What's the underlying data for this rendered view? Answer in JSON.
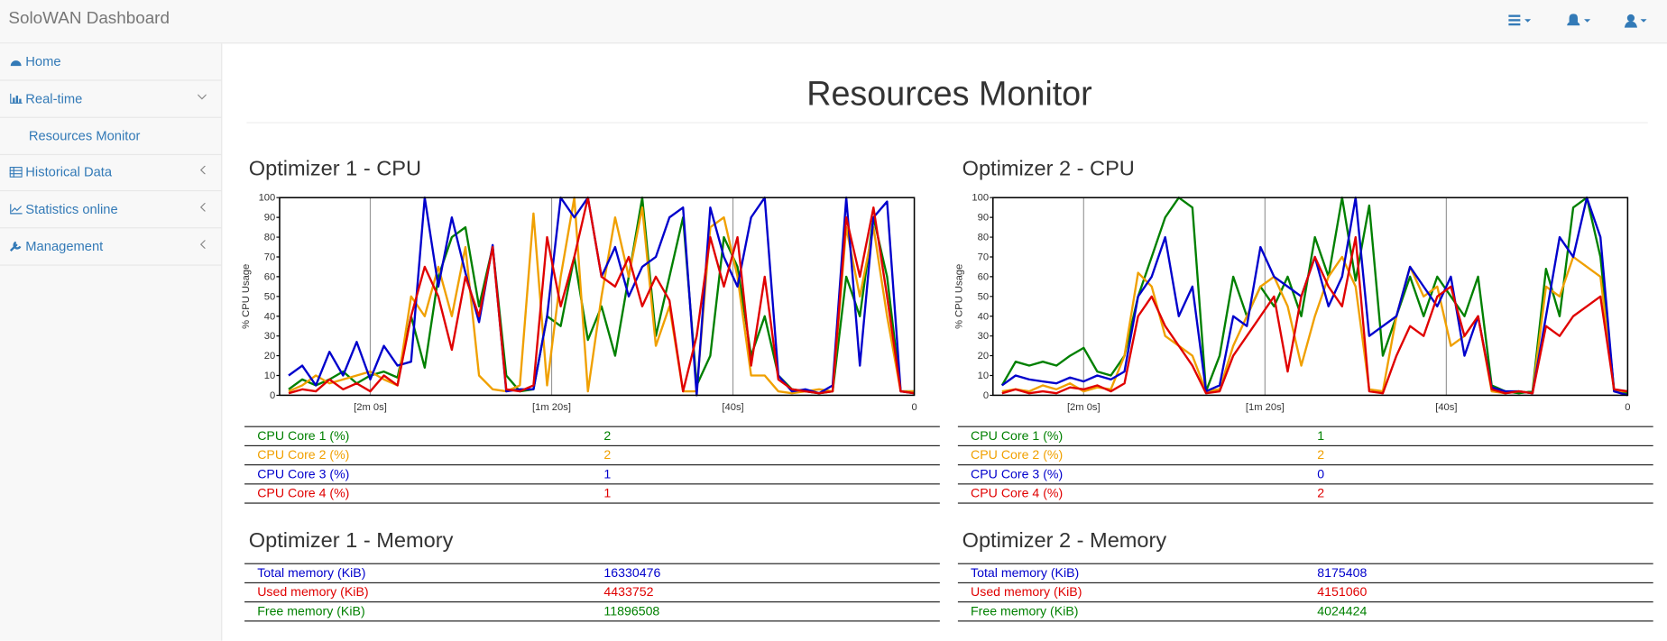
{
  "header": {
    "title": "SoloWAN Dashboard"
  },
  "sidebar": {
    "items": [
      {
        "label": "Home"
      },
      {
        "label": "Real-time"
      },
      {
        "label": "Resources Monitor"
      },
      {
        "label": "Historical Data"
      },
      {
        "label": "Statistics online"
      },
      {
        "label": "Management"
      }
    ]
  },
  "page_title": "Resources Monitor",
  "chart_data": [
    {
      "type": "line",
      "title": "Optimizer 1 - CPU",
      "ylabel": "% CPU Usage",
      "x": [
        -138,
        -135,
        -132,
        -129,
        -126,
        -123,
        -120,
        -117,
        -114,
        -111,
        -108,
        -105,
        -102,
        -99,
        -96,
        -93,
        -90,
        -87,
        -84,
        -81,
        -78,
        -75,
        -72,
        -69,
        -66,
        -63,
        -60,
        -57,
        -54,
        -51,
        -48,
        -45,
        -42,
        -39,
        -36,
        -33,
        -30,
        -27,
        -24,
        -21,
        -18,
        -15,
        -12,
        -9,
        -6,
        -3,
        0
      ],
      "xlim": [
        -140,
        0
      ],
      "xticks": [
        {
          "value": -120,
          "label": "[2m 0s]"
        },
        {
          "value": -80,
          "label": "[1m 20s]"
        },
        {
          "value": -40,
          "label": "[40s]"
        },
        0
      ],
      "ylim": [
        0,
        100
      ],
      "yticks": [
        0,
        10,
        20,
        30,
        40,
        50,
        60,
        70,
        80,
        90,
        100
      ],
      "grid": "x",
      "series": [
        {
          "name": "CPU Core 1 (%)",
          "color": "#008000",
          "values": [
            3,
            8,
            5,
            8,
            12,
            6,
            10,
            12,
            9,
            40,
            14,
            60,
            80,
            85,
            45,
            75,
            10,
            2,
            3,
            40,
            35,
            70,
            28,
            45,
            20,
            60,
            100,
            30,
            60,
            90,
            5,
            20,
            80,
            65,
            20,
            40,
            10,
            3,
            2,
            1,
            2,
            60,
            40,
            90,
            60,
            2,
            2
          ]
        },
        {
          "name": "CPU Core 2 (%)",
          "color": "#f0a000",
          "values": [
            2,
            5,
            10,
            6,
            8,
            10,
            12,
            8,
            5,
            50,
            40,
            65,
            40,
            75,
            10,
            3,
            2,
            5,
            92,
            5,
            60,
            100,
            2,
            50,
            90,
            60,
            95,
            25,
            45,
            2,
            2,
            85,
            90,
            60,
            10,
            10,
            2,
            1,
            2,
            3,
            2,
            85,
            50,
            85,
            40,
            2,
            2
          ]
        },
        {
          "name": "CPU Core 3 (%)",
          "color": "#0000cc",
          "values": [
            10,
            15,
            5,
            22,
            10,
            27,
            8,
            25,
            15,
            17,
            100,
            55,
            90,
            62,
            37,
            76,
            2,
            3,
            3,
            40,
            100,
            90,
            100,
            60,
            75,
            50,
            65,
            70,
            90,
            95,
            0,
            95,
            70,
            55,
            90,
            100,
            10,
            2,
            3,
            1,
            5,
            100,
            15,
            90,
            98,
            2,
            1
          ]
        },
        {
          "name": "CPU Core 4 (%)",
          "color": "#e00000",
          "values": [
            1,
            3,
            2,
            8,
            3,
            6,
            2,
            10,
            5,
            40,
            65,
            50,
            23,
            60,
            40,
            75,
            3,
            2,
            5,
            80,
            45,
            70,
            100,
            60,
            55,
            70,
            45,
            60,
            48,
            2,
            30,
            80,
            55,
            80,
            15,
            60,
            8,
            3,
            2,
            1,
            2,
            90,
            60,
            95,
            50,
            2,
            1
          ]
        }
      ],
      "latest": [
        2,
        2,
        1,
        1
      ]
    },
    {
      "type": "line",
      "title": "Optimizer 2 - CPU",
      "ylabel": "% CPU Usage",
      "x": [
        -138,
        -135,
        -132,
        -129,
        -126,
        -123,
        -120,
        -117,
        -114,
        -111,
        -108,
        -105,
        -102,
        -99,
        -96,
        -93,
        -90,
        -87,
        -84,
        -81,
        -78,
        -75,
        -72,
        -69,
        -66,
        -63,
        -60,
        -57,
        -54,
        -51,
        -48,
        -45,
        -42,
        -39,
        -36,
        -33,
        -30,
        -27,
        -24,
        -21,
        -18,
        -15,
        -12,
        -9,
        -6,
        -3,
        0
      ],
      "xlim": [
        -140,
        0
      ],
      "xticks": [
        {
          "value": -120,
          "label": "[2m 0s]"
        },
        {
          "value": -80,
          "label": "[1m 20s]"
        },
        {
          "value": -40,
          "label": "[40s]"
        },
        0
      ],
      "ylim": [
        0,
        100
      ],
      "yticks": [
        0,
        10,
        20,
        30,
        40,
        50,
        60,
        70,
        80,
        90,
        100
      ],
      "grid": "x",
      "series": [
        {
          "name": "CPU Core 1 (%)",
          "color": "#008000",
          "values": [
            5,
            17,
            15,
            17,
            15,
            20,
            24,
            12,
            10,
            20,
            50,
            70,
            90,
            100,
            95,
            2,
            20,
            60,
            40,
            55,
            45,
            60,
            40,
            80,
            60,
            100,
            58,
            96,
            20,
            40,
            60,
            40,
            60,
            50,
            40,
            60,
            5,
            2,
            1,
            2,
            64,
            40,
            95,
            100,
            70,
            3,
            1
          ]
        },
        {
          "name": "CPU Core 2 (%)",
          "color": "#f0a000",
          "values": [
            2,
            3,
            2,
            5,
            3,
            6,
            2,
            4,
            3,
            20,
            62,
            55,
            30,
            25,
            20,
            2,
            3,
            25,
            40,
            55,
            60,
            45,
            15,
            40,
            60,
            70,
            55,
            3,
            2,
            40,
            65,
            50,
            55,
            25,
            30,
            40,
            2,
            1,
            2,
            1,
            55,
            50,
            70,
            65,
            60,
            2,
            2
          ]
        },
        {
          "name": "CPU Core 3 (%)",
          "color": "#0000cc",
          "values": [
            5,
            10,
            8,
            7,
            6,
            9,
            7,
            10,
            8,
            12,
            50,
            60,
            80,
            40,
            55,
            2,
            5,
            40,
            35,
            75,
            60,
            55,
            50,
            70,
            45,
            60,
            100,
            30,
            35,
            40,
            65,
            55,
            45,
            60,
            20,
            40,
            4,
            2,
            2,
            1,
            40,
            80,
            70,
            100,
            80,
            2,
            0
          ]
        },
        {
          "name": "CPU Core 4 (%)",
          "color": "#e00000",
          "values": [
            1,
            3,
            1,
            2,
            1,
            4,
            3,
            5,
            2,
            6,
            40,
            50,
            35,
            25,
            15,
            1,
            2,
            20,
            30,
            40,
            50,
            12,
            50,
            70,
            55,
            45,
            80,
            2,
            1,
            20,
            35,
            30,
            50,
            55,
            30,
            40,
            3,
            1,
            2,
            1,
            35,
            30,
            40,
            45,
            50,
            3,
            2
          ]
        }
      ],
      "latest": [
        1,
        2,
        0,
        2
      ]
    }
  ],
  "memory": [
    {
      "title": "Optimizer 1 - Memory",
      "rows": [
        {
          "label": "Total memory (KiB)",
          "value": 16330476,
          "color": "#0000cc"
        },
        {
          "label": "Used memory (KiB)",
          "value": 4433752,
          "color": "#e00000"
        },
        {
          "label": "Free memory (KiB)",
          "value": 11896508,
          "color": "#008000"
        }
      ]
    },
    {
      "title": "Optimizer 2 - Memory",
      "rows": [
        {
          "label": "Total memory (KiB)",
          "value": 8175408,
          "color": "#0000cc"
        },
        {
          "label": "Used memory (KiB)",
          "value": 4151060,
          "color": "#e00000"
        },
        {
          "label": "Free memory (KiB)",
          "value": 4024424,
          "color": "#008000"
        }
      ]
    }
  ]
}
